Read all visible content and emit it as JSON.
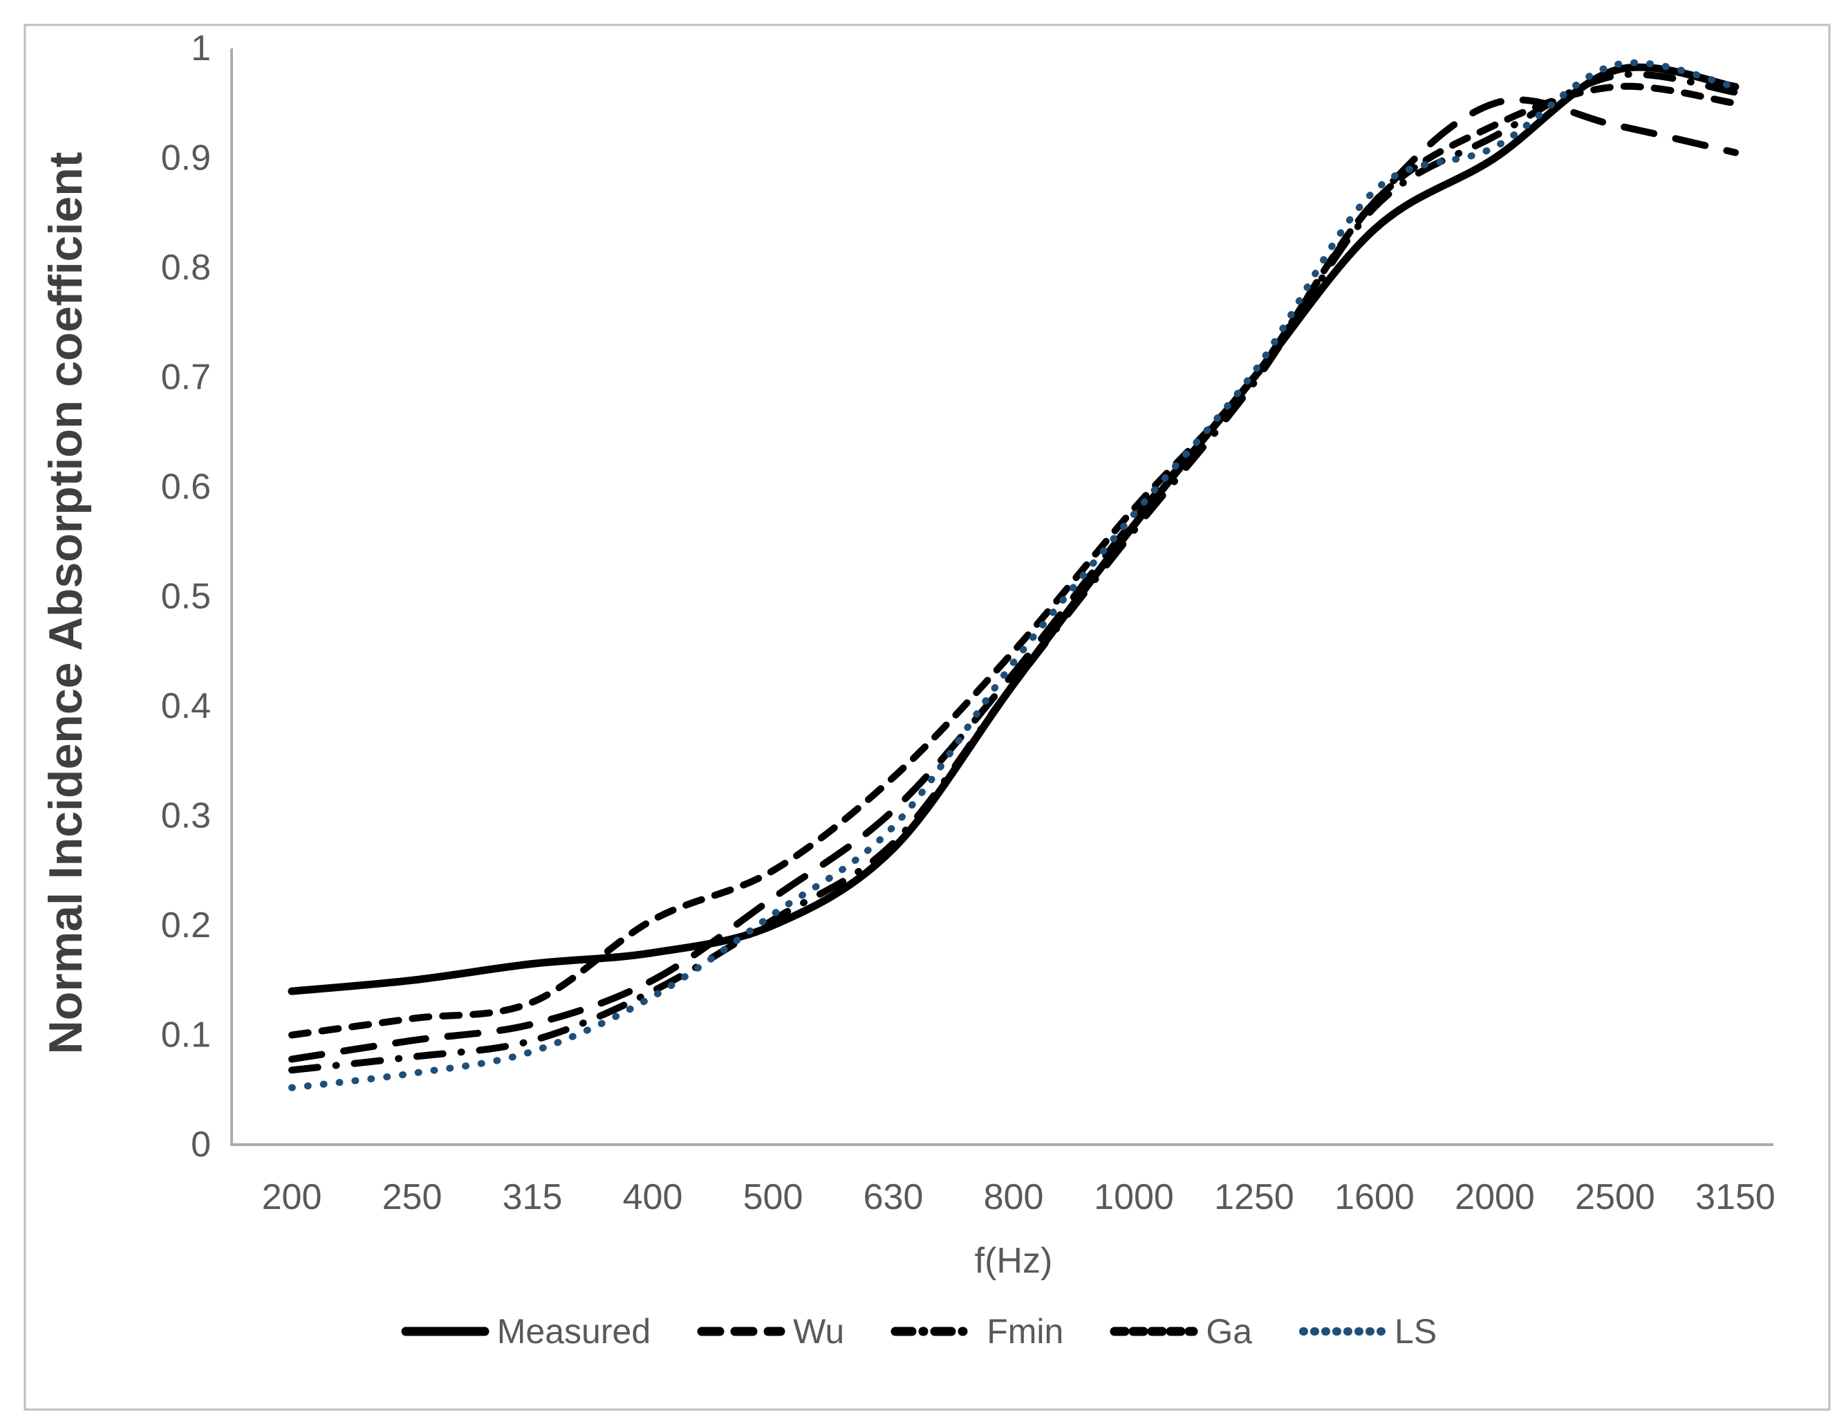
{
  "figure": {
    "background": "#ffffff",
    "border_color": "#bfbfbf"
  },
  "chart_data": {
    "type": "line",
    "title": "",
    "xlabel": "f(Hz)",
    "ylabel": "Normal Incidence Absorption coefficient",
    "categories": [
      "200",
      "250",
      "315",
      "400",
      "500",
      "630",
      "800",
      "1000",
      "1250",
      "1600",
      "2000",
      "2500",
      "3150"
    ],
    "y_tick_labels": [
      "0",
      "0.1",
      "0.2",
      "0.3",
      "0.4",
      "0.5",
      "0.6",
      "0.7",
      "0.8",
      "0.9",
      "1"
    ],
    "ylim": [
      0,
      1
    ],
    "grid": false,
    "legend_position": "bottom",
    "series": [
      {
        "name": "Measured",
        "style": "solid",
        "color": "#000000",
        "values": [
          0.14,
          0.15,
          0.165,
          0.175,
          0.2,
          0.27,
          0.42,
          0.565,
          0.7,
          0.835,
          0.9,
          0.98,
          0.965
        ]
      },
      {
        "name": "Wu",
        "style": "long-dash",
        "color": "#000000",
        "values": [
          0.078,
          0.095,
          0.11,
          0.15,
          0.225,
          0.305,
          0.43,
          0.57,
          0.7,
          0.86,
          0.95,
          0.93,
          0.905
        ]
      },
      {
        "name": "Fmin",
        "style": "dash-dot",
        "color": "#000000",
        "values": [
          0.068,
          0.08,
          0.095,
          0.14,
          0.205,
          0.275,
          0.42,
          0.56,
          0.695,
          0.855,
          0.92,
          0.975,
          0.96
        ]
      },
      {
        "name": "Ga",
        "style": "dash",
        "color": "#000000",
        "values": [
          0.1,
          0.115,
          0.13,
          0.205,
          0.25,
          0.335,
          0.45,
          0.58,
          0.7,
          0.86,
          0.93,
          0.965,
          0.95
        ]
      },
      {
        "name": "LS",
        "style": "dot",
        "color": "#1f4e79",
        "values": [
          0.052,
          0.065,
          0.085,
          0.135,
          0.21,
          0.29,
          0.44,
          0.575,
          0.705,
          0.87,
          0.91,
          0.985,
          0.965
        ]
      }
    ]
  },
  "axes": {
    "tick_color": "#595959",
    "line_color": "#acacac",
    "xlabel_color": "#595959",
    "ylabel_color": "#3f3f3f"
  },
  "legend": {
    "text_color": "#595959"
  }
}
